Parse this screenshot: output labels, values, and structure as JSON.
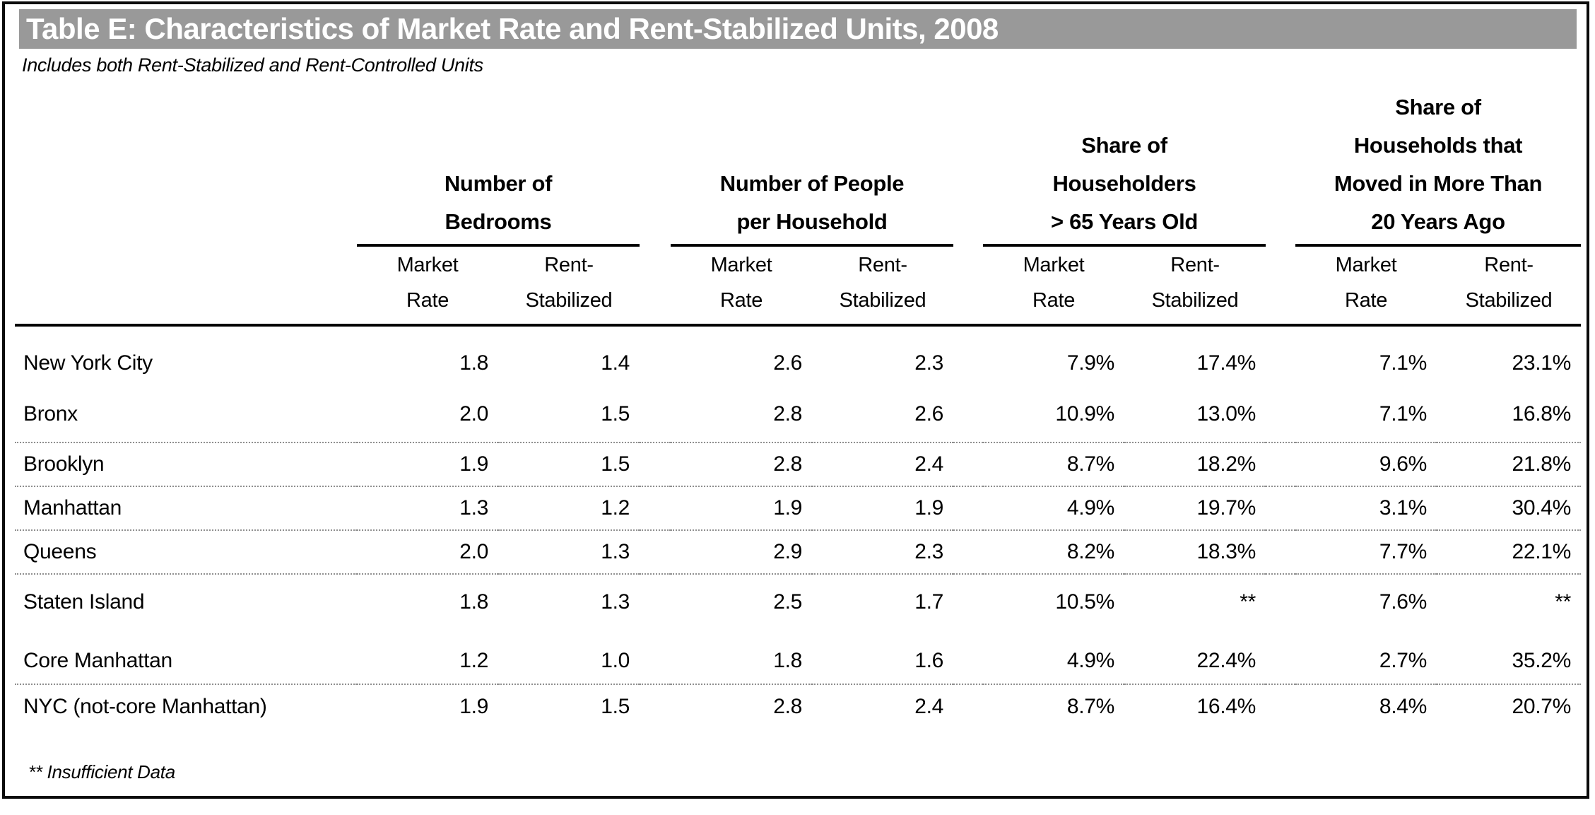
{
  "colors": {
    "title_bar_bg": "#999999",
    "title_text": "#ffffff",
    "rule_black": "#000000",
    "row_separator_gray": "#8f8f8f"
  },
  "header_layout": {
    "groups": [
      {
        "lines": [
          "Number of",
          "Bedrooms"
        ]
      },
      {
        "lines": [
          "Number of People",
          "per Household"
        ]
      },
      {
        "lines": [
          "Share of",
          "Householders",
          "> 65 Years Old"
        ]
      },
      {
        "lines": [
          "Share of",
          "Households that",
          "Moved in More Than",
          "20 Years Ago"
        ]
      }
    ],
    "sub_market_lines": [
      "Market",
      "Rate"
    ],
    "sub_rent_lines": [
      "Rent-",
      "Stabilized"
    ]
  },
  "chart_data": {
    "type": "table",
    "title": "Table E: Characteristics of Market Rate and Rent-Stabilized Units, 2008",
    "subtitle": "Includes both Rent-Stabilized and Rent-Controlled Units",
    "footnote": "** Insufficient Data",
    "column_groups": [
      "Number of Bedrooms",
      "Number of People per Household",
      "Share of Householders > 65 Years Old",
      "Share of Households that Moved in More Than 20 Years Ago"
    ],
    "sub_columns": [
      "Market Rate",
      "Rent-Stabilized"
    ],
    "rows": [
      {
        "label": "New York City",
        "values": [
          "1.8",
          "1.4",
          "2.6",
          "2.3",
          "7.9%",
          "17.4%",
          "7.1%",
          "23.1%"
        ]
      },
      {
        "label": "Bronx",
        "values": [
          "2.0",
          "1.5",
          "2.8",
          "2.6",
          "10.9%",
          "13.0%",
          "7.1%",
          "16.8%"
        ]
      },
      {
        "label": "Brooklyn",
        "values": [
          "1.9",
          "1.5",
          "2.8",
          "2.4",
          "8.7%",
          "18.2%",
          "9.6%",
          "21.8%"
        ]
      },
      {
        "label": "Manhattan",
        "values": [
          "1.3",
          "1.2",
          "1.9",
          "1.9",
          "4.9%",
          "19.7%",
          "3.1%",
          "30.4%"
        ]
      },
      {
        "label": "Queens",
        "values": [
          "2.0",
          "1.3",
          "2.9",
          "2.3",
          "8.2%",
          "18.3%",
          "7.7%",
          "22.1%"
        ]
      },
      {
        "label": "Staten Island",
        "values": [
          "1.8",
          "1.3",
          "2.5",
          "1.7",
          "10.5%",
          "**",
          "7.6%",
          "**"
        ]
      },
      {
        "label": "Core Manhattan",
        "values": [
          "1.2",
          "1.0",
          "1.8",
          "1.6",
          "4.9%",
          "22.4%",
          "2.7%",
          "35.2%"
        ]
      },
      {
        "label": "NYC (not-core Manhattan)",
        "values": [
          "1.9",
          "1.5",
          "2.8",
          "2.4",
          "8.7%",
          "16.4%",
          "8.4%",
          "20.7%"
        ]
      }
    ]
  }
}
